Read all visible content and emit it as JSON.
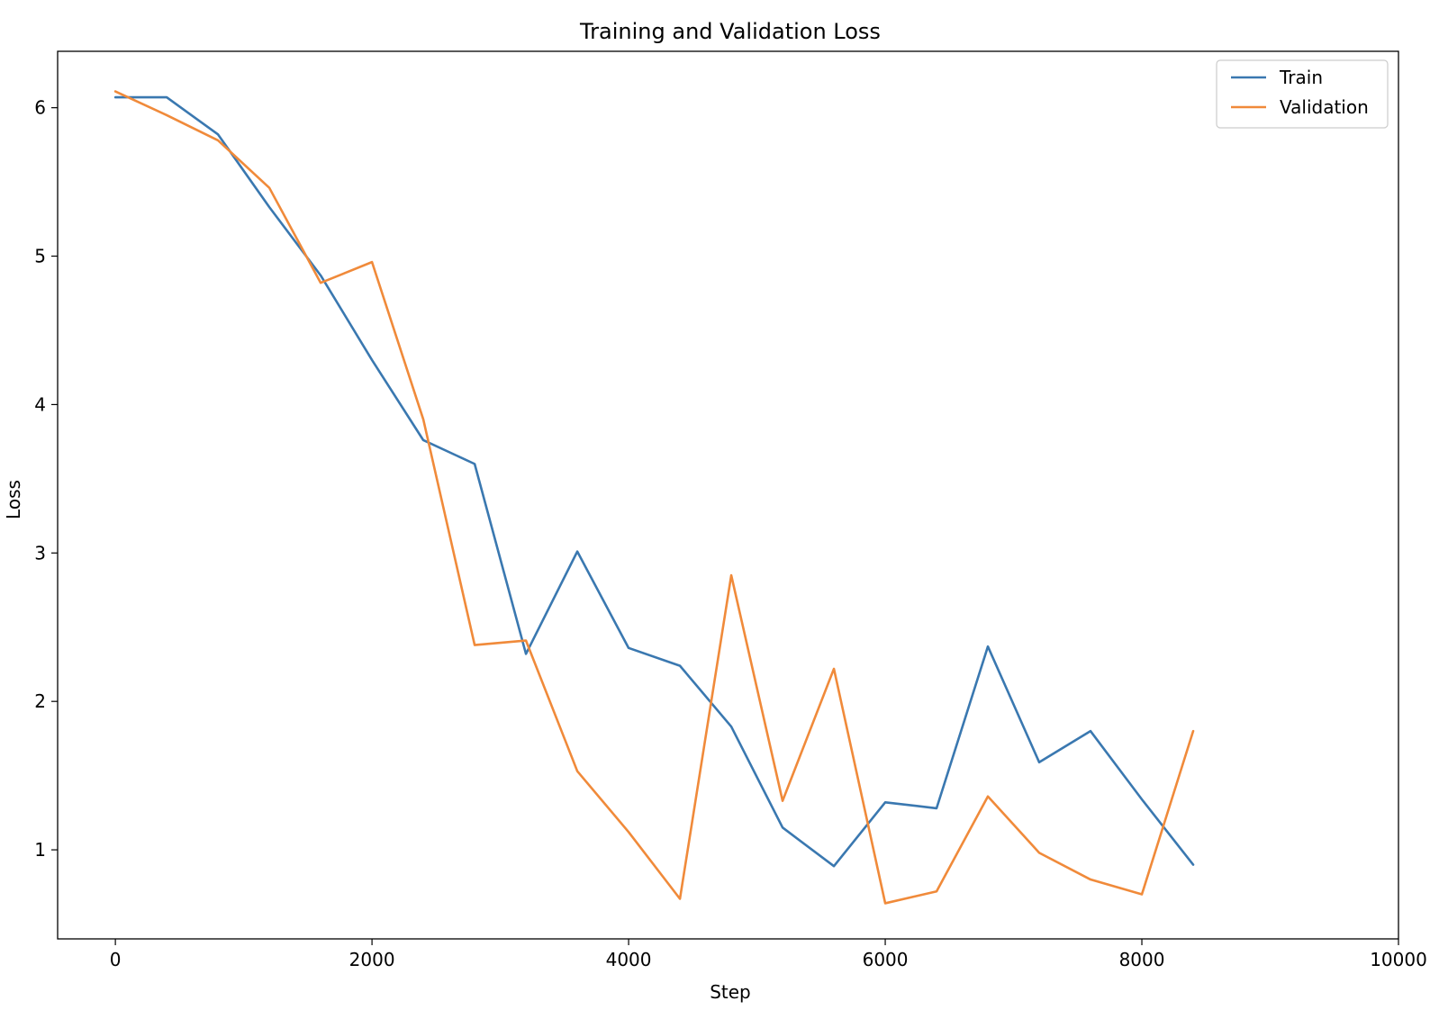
{
  "chart_data": {
    "type": "line",
    "title": "Training and Validation Loss",
    "xlabel": "Step",
    "ylabel": "Loss",
    "xlim": [
      -450,
      10000
    ],
    "ylim": [
      0.4,
      6.38
    ],
    "xticks": [
      0,
      2000,
      4000,
      6000,
      8000,
      10000
    ],
    "yticks": [
      1,
      2,
      3,
      4,
      5,
      6
    ],
    "grid": false,
    "legend": "top-right",
    "series": [
      {
        "name": "Train",
        "color": "#3a78b0",
        "x": [
          0,
          400,
          800,
          1200,
          1600,
          2000,
          2400,
          2800,
          3200,
          3600,
          4000,
          4400,
          4800,
          5200,
          5600,
          6000,
          6400,
          6800,
          7200,
          7600,
          8000,
          8400
        ],
        "y": [
          6.07,
          6.07,
          5.82,
          5.33,
          4.87,
          4.3,
          3.76,
          3.6,
          2.32,
          3.01,
          2.36,
          2.24,
          1.83,
          1.15,
          0.89,
          1.32,
          1.28,
          2.37,
          1.59,
          1.8,
          1.34,
          0.9
        ]
      },
      {
        "name": "Validation",
        "color": "#f08a3a",
        "x": [
          0,
          400,
          800,
          1200,
          1600,
          2000,
          2400,
          2800,
          3200,
          3600,
          4000,
          4400,
          4800,
          5200,
          5600,
          6000,
          6400,
          6800,
          7200,
          7600,
          8000,
          8400
        ],
        "y": [
          6.11,
          5.95,
          5.78,
          5.46,
          4.82,
          4.96,
          3.9,
          2.38,
          2.41,
          1.53,
          1.12,
          0.67,
          2.85,
          1.33,
          2.22,
          0.64,
          0.72,
          1.36,
          0.98,
          0.8,
          0.7,
          1.8
        ]
      }
    ]
  }
}
